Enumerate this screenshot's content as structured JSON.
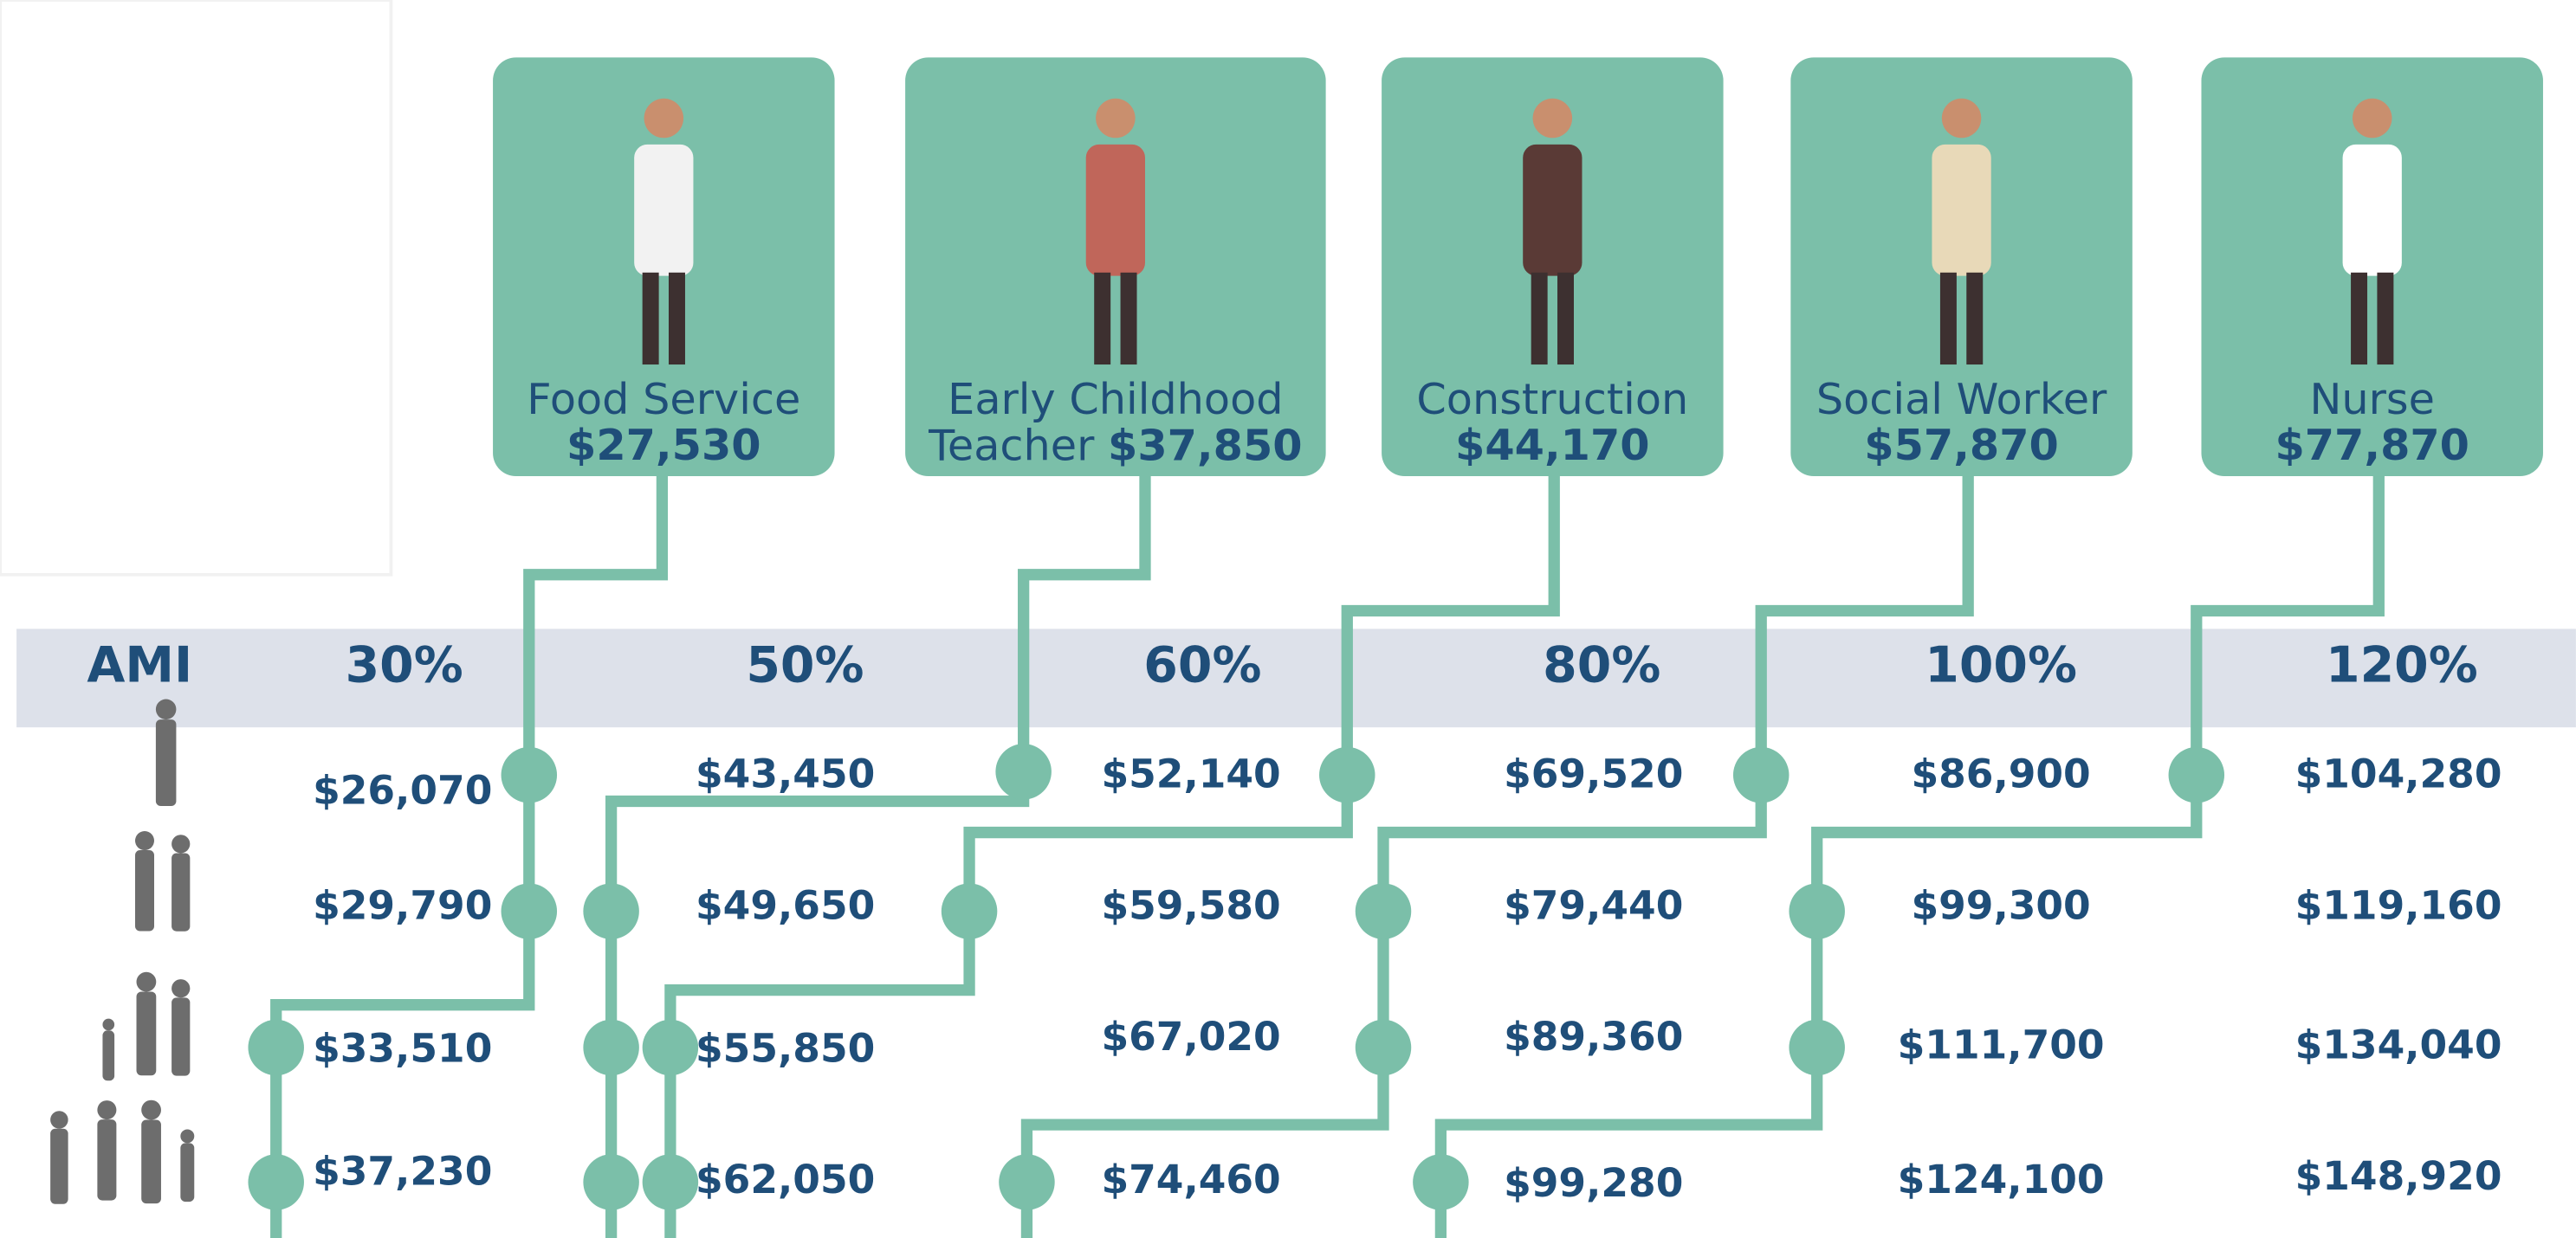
{
  "occupations": [
    {
      "title": "Food Service",
      "salary": "$27,530"
    },
    {
      "title": "Early Childhood Teacher",
      "salary": "$37,850"
    },
    {
      "title": "Construction",
      "salary": "$44,170"
    },
    {
      "title": "Social Worker",
      "salary": "$57,870"
    },
    {
      "title": "Nurse",
      "salary": "$77,870"
    }
  ],
  "ami": {
    "label": "AMI",
    "levels": [
      "30%",
      "50%",
      "60%",
      "80%",
      "100%",
      "120%"
    ]
  },
  "rows": [
    [
      "$26,070",
      "$43,450",
      "$52,140",
      "$69,520",
      "$86,900",
      "$104,280"
    ],
    [
      "$29,790",
      "$49,650",
      "$59,580",
      "$79,440",
      "$99,300",
      "$119,160"
    ],
    [
      "$33,510",
      "$55,850",
      "$67,020",
      "$89,360",
      "$111,700",
      "$134,040"
    ],
    [
      "$37,230",
      "$62,050",
      "$74,460",
      "$99,280",
      "$124,100",
      "$148,920"
    ]
  ]
}
